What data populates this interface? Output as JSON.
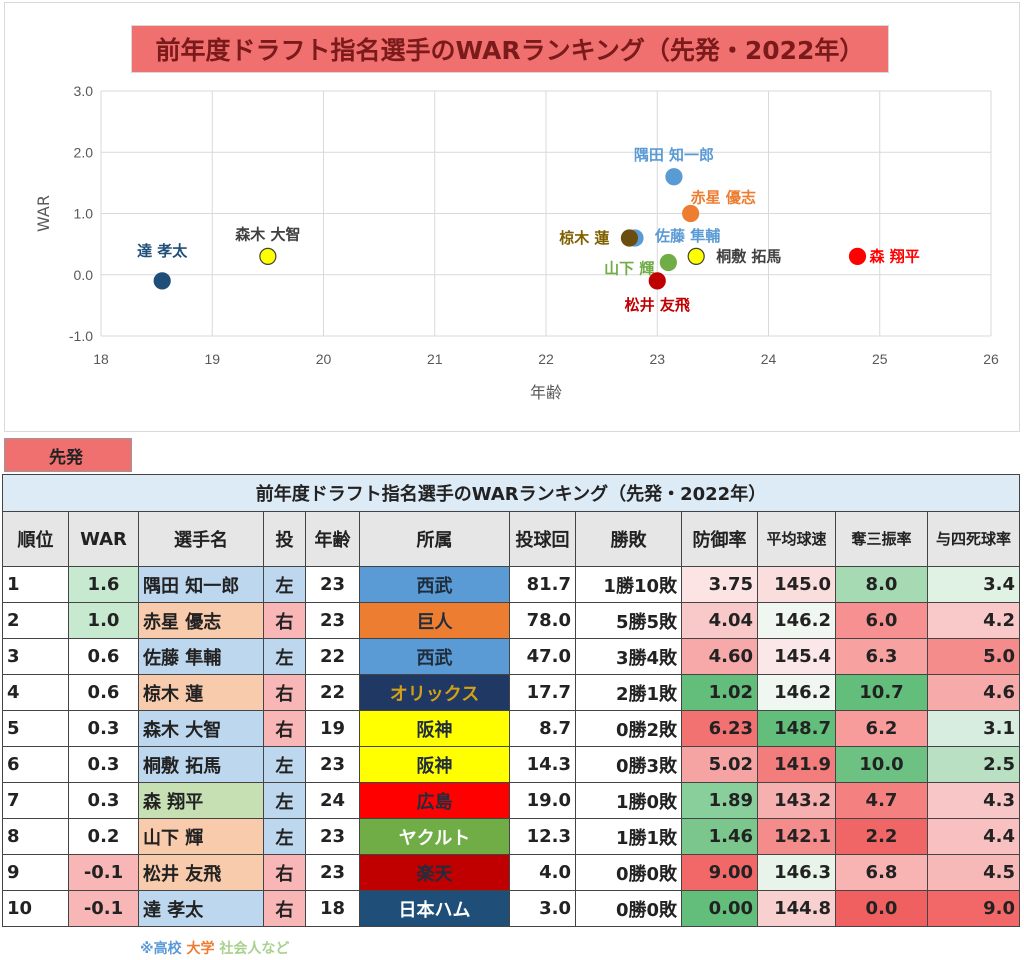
{
  "chart_data": {
    "type": "scatter",
    "title": "前年度ドラフト指名選手のWARランキング（先発・2022年）",
    "xlabel": "年齢",
    "ylabel": "WAR",
    "xlim": [
      18,
      26
    ],
    "ylim": [
      -1.0,
      3.0
    ],
    "xticks": [
      "18",
      "19",
      "20",
      "21",
      "22",
      "23",
      "24",
      "25",
      "26"
    ],
    "yticks": [
      "3.0",
      "2.0",
      "1.0",
      "0.0",
      "-1.0"
    ],
    "grid": true,
    "points": [
      {
        "name": "隅田 知一郎",
        "x": 23.15,
        "y": 1.6,
        "color": "#5b9bd5",
        "label_color": "#5b9bd5"
      },
      {
        "name": "赤星 優志",
        "x": 23.3,
        "y": 1.0,
        "color": "#ed7d31",
        "label_color": "#ed7d31"
      },
      {
        "name": "佐藤 隼輔",
        "x": 22.8,
        "y": 0.6,
        "color": "#5b9bd5",
        "label_color": "#5b9bd5"
      },
      {
        "name": "椋木 蓮",
        "x": 22.75,
        "y": 0.6,
        "color": "#6b4d10",
        "label_color": "#7f6000"
      },
      {
        "name": "森木 大智",
        "x": 19.5,
        "y": 0.3,
        "color": "#ffff00",
        "label_color": "#404040"
      },
      {
        "name": "桐敷 拓馬",
        "x": 23.35,
        "y": 0.3,
        "color": "#ffff00",
        "label_color": "#404040"
      },
      {
        "name": "森 翔平",
        "x": 24.8,
        "y": 0.3,
        "color": "#ff0000",
        "label_color": "#ff0000"
      },
      {
        "name": "山下 輝",
        "x": 23.1,
        "y": 0.2,
        "color": "#70ad47",
        "label_color": "#70ad47"
      },
      {
        "name": "松井 友飛",
        "x": 23.0,
        "y": -0.1,
        "color": "#c00000",
        "label_color": "#c00000"
      },
      {
        "name": "達 孝太",
        "x": 18.55,
        "y": -0.1,
        "color": "#1f4e79",
        "label_color": "#1f4e79"
      }
    ]
  },
  "tab_label": "先発",
  "table": {
    "title": "前年度ドラフト指名選手のWARランキング（先発・2022年）",
    "headers": {
      "rank": "順位",
      "war": "WAR",
      "name": "選手名",
      "throw": "投",
      "age": "年齢",
      "team": "所属",
      "ip": "投球回",
      "record": "勝敗",
      "era": "防御率",
      "velo": "平均球速",
      "k": "奪三振率",
      "bb": "与四死球率"
    },
    "rows": [
      {
        "rank": "1",
        "war": "1.6",
        "name": "隅田 知一郎",
        "throw": "左",
        "age": "23",
        "team": "西武",
        "ip": "81.7",
        "record": "1勝10敗",
        "era": "3.75",
        "velo": "145.0",
        "k": "8.0",
        "bb": "3.4"
      },
      {
        "rank": "2",
        "war": "1.0",
        "name": "赤星 優志",
        "throw": "右",
        "age": "23",
        "team": "巨人",
        "ip": "78.0",
        "record": "5勝5敗",
        "era": "4.04",
        "velo": "146.2",
        "k": "6.0",
        "bb": "4.2"
      },
      {
        "rank": "3",
        "war": "0.6",
        "name": "佐藤 隼輔",
        "throw": "左",
        "age": "22",
        "team": "西武",
        "ip": "47.0",
        "record": "3勝4敗",
        "era": "4.60",
        "velo": "145.4",
        "k": "6.3",
        "bb": "5.0"
      },
      {
        "rank": "4",
        "war": "0.6",
        "name": "椋木 蓮",
        "throw": "右",
        "age": "22",
        "team": "オリックス",
        "ip": "17.7",
        "record": "2勝1敗",
        "era": "1.02",
        "velo": "146.2",
        "k": "10.7",
        "bb": "4.6"
      },
      {
        "rank": "5",
        "war": "0.3",
        "name": "森木 大智",
        "throw": "右",
        "age": "19",
        "team": "阪神",
        "ip": "8.7",
        "record": "0勝2敗",
        "era": "6.23",
        "velo": "148.7",
        "k": "6.2",
        "bb": "3.1"
      },
      {
        "rank": "6",
        "war": "0.3",
        "name": "桐敷 拓馬",
        "throw": "左",
        "age": "23",
        "team": "阪神",
        "ip": "14.3",
        "record": "0勝3敗",
        "era": "5.02",
        "velo": "141.9",
        "k": "10.0",
        "bb": "2.5"
      },
      {
        "rank": "7",
        "war": "0.3",
        "name": "森 翔平",
        "throw": "左",
        "age": "24",
        "team": "広島",
        "ip": "19.0",
        "record": "1勝0敗",
        "era": "1.89",
        "velo": "143.2",
        "k": "4.7",
        "bb": "4.3"
      },
      {
        "rank": "8",
        "war": "0.2",
        "name": "山下 輝",
        "throw": "左",
        "age": "23",
        "team": "ヤクルト",
        "ip": "12.3",
        "record": "1勝1敗",
        "era": "1.46",
        "velo": "142.1",
        "k": "2.2",
        "bb": "4.4"
      },
      {
        "rank": "9",
        "war": "-0.1",
        "name": "松井 友飛",
        "throw": "右",
        "age": "23",
        "team": "楽天",
        "ip": "4.0",
        "record": "0勝0敗",
        "era": "9.00",
        "velo": "146.3",
        "k": "6.8",
        "bb": "4.5"
      },
      {
        "rank": "10",
        "war": "-0.1",
        "name": "達 孝太",
        "throw": "右",
        "age": "18",
        "team": "日本ハム",
        "ip": "3.0",
        "record": "0勝0敗",
        "era": "0.00",
        "velo": "144.8",
        "k": "0.0",
        "bb": "9.0"
      }
    ],
    "colors": {
      "war": [
        "#c6e9cf",
        "#c6e9cf",
        "#ffffff",
        "#ffffff",
        "#ffffff",
        "#ffffff",
        "#ffffff",
        "#ffffff",
        "#f8b6b6",
        "#f8b6b6"
      ],
      "name": [
        "#bdd7ee",
        "#f8cbad",
        "#bdd7ee",
        "#f8cbad",
        "#bdd7ee",
        "#bdd7ee",
        "#c6e0b4",
        "#f8cbad",
        "#f8cbad",
        "#bdd7ee"
      ],
      "throw": [
        "#bdd7ee",
        "#f8b6b6",
        "#bdd7ee",
        "#f8b6b6",
        "#f8b6b6",
        "#bdd7ee",
        "#bdd7ee",
        "#bdd7ee",
        "#f8b6b6",
        "#f8b6b6"
      ],
      "team_bg": [
        "#5b9bd5",
        "#ed7d31",
        "#5b9bd5",
        "#1f3864",
        "#ffff00",
        "#ffff00",
        "#ff0000",
        "#70ad47",
        "#c00000",
        "#1f4e79"
      ],
      "team_fg": [
        "#1f2d3d",
        "#1f2d3d",
        "#1f2d3d",
        "#d4a017",
        "#1f2d3d",
        "#1f2d3d",
        "#1f2d3d",
        "#ffffff",
        "#1f2d3d",
        "#ffffff"
      ],
      "era": [
        "#fce4e4",
        "#f9c9c9",
        "#f7a9a9",
        "#63be7b",
        "#f27272",
        "#f5a3a3",
        "#89cf9b",
        "#7ac68d",
        "#f26868",
        "#63be7b"
      ],
      "velo": [
        "#fadede",
        "#f0f7f0",
        "#fbe7e7",
        "#f0f7f0",
        "#63be7b",
        "#f37d7d",
        "#f6b0b0",
        "#f58c8c",
        "#e8f4ea",
        "#f8d0d0"
      ],
      "k": [
        "#a6dab3",
        "#f79191",
        "#f8a1a1",
        "#63be7b",
        "#f89b9b",
        "#6dc283",
        "#f58080",
        "#f06565",
        "#f8b3b3",
        "#f06060"
      ],
      "bb": [
        "#e0f2e4",
        "#f9c9c9",
        "#f48c8c",
        "#f6aaaa",
        "#d7ede0",
        "#b9e0c2",
        "#f8c6c6",
        "#f8c0c0",
        "#f7b8b8",
        "#f26868"
      ]
    }
  },
  "footnote": {
    "prefix": "※",
    "items": [
      {
        "text": "高校",
        "color": "#5b9bd5"
      },
      {
        "text": "大学",
        "color": "#ed7d31"
      },
      {
        "text": "社会人など",
        "color": "#a9d18e"
      }
    ]
  }
}
